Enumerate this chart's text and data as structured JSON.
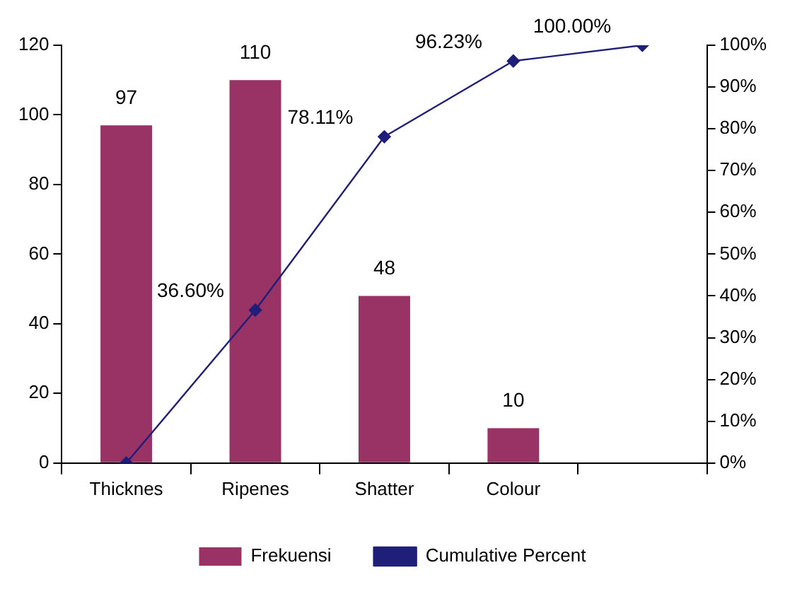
{
  "chart_data": {
    "type": "bar",
    "categories": [
      "Thicknes",
      "Ripenes",
      "Shatter",
      "Colour",
      null
    ],
    "series": [
      {
        "name": "Frekuensi",
        "color": "#993366",
        "values": [
          97,
          110,
          48,
          10,
          null
        ],
        "value_labels": [
          "97",
          "110",
          "48",
          "10",
          null
        ]
      },
      {
        "name": "Cumulative Percent",
        "type": "line",
        "axis": "y2",
        "color": "#1f1f7a",
        "values": [
          0,
          36.6,
          78.11,
          96.23,
          100
        ],
        "value_labels": [
          null,
          "36.60%",
          "78.11%",
          "96.23%",
          "100.00%"
        ]
      }
    ],
    "ylim": [
      0,
      120
    ],
    "yticks": [
      0,
      20,
      40,
      60,
      80,
      100,
      120
    ],
    "y2lim": [
      0,
      100
    ],
    "y2ticks": [
      {
        "value": 0,
        "label": "0%"
      },
      {
        "value": 10,
        "label": "10%"
      },
      {
        "value": 20,
        "label": "20%"
      },
      {
        "value": 30,
        "label": "30%"
      },
      {
        "value": 40,
        "label": "40%"
      },
      {
        "value": 50,
        "label": "50%"
      },
      {
        "value": 60,
        "label": "60%"
      },
      {
        "value": 70,
        "label": "70%"
      },
      {
        "value": 80,
        "label": "80%"
      },
      {
        "value": 90,
        "label": "90%"
      },
      {
        "value": 100,
        "label": "100%"
      }
    ],
    "grid": false,
    "legend": "bottom",
    "marker": "diamond",
    "line_style": "solid"
  }
}
